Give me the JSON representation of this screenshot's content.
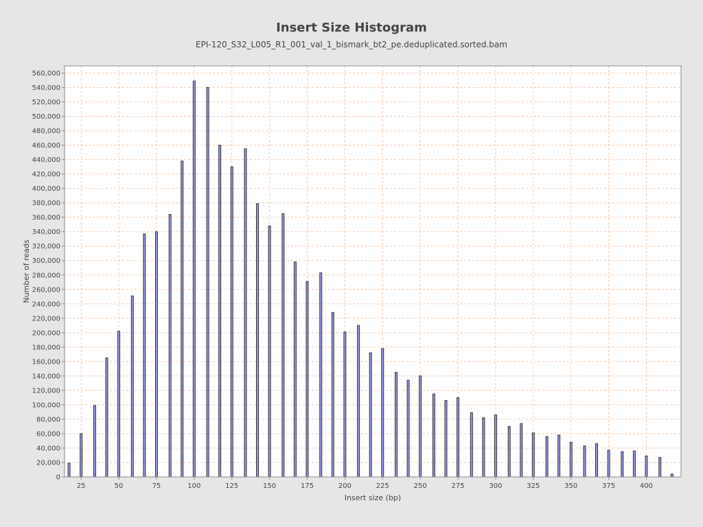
{
  "chart_data": {
    "type": "bar",
    "title": "Insert Size Histogram",
    "subtitle": "EPI-120_S32_L005_R1_001_val_1_bismark_bt2_pe.deduplicated.sorted.bam",
    "xlabel": "Insert size (bp)",
    "ylabel": "Number of reads",
    "xlim": [
      14,
      423
    ],
    "ylim": [
      0,
      570000
    ],
    "x_ticks": [
      25,
      50,
      75,
      100,
      125,
      150,
      175,
      200,
      225,
      250,
      275,
      300,
      325,
      350,
      375,
      400
    ],
    "y_ticks": [
      0,
      20000,
      40000,
      60000,
      80000,
      100000,
      120000,
      140000,
      160000,
      180000,
      200000,
      220000,
      240000,
      260000,
      280000,
      300000,
      320000,
      340000,
      360000,
      380000,
      400000,
      420000,
      440000,
      460000,
      480000,
      500000,
      520000,
      540000,
      560000
    ],
    "x_tick_labels": [
      "25",
      "50",
      "75",
      "100",
      "125",
      "150",
      "175",
      "200",
      "225",
      "250",
      "275",
      "300",
      "325",
      "350",
      "375",
      "400"
    ],
    "y_tick_labels": [
      "0",
      "20,000",
      "40,000",
      "60,000",
      "80,000",
      "100,000",
      "120,000",
      "140,000",
      "160,000",
      "180,000",
      "200,000",
      "220,000",
      "240,000",
      "260,000",
      "280,000",
      "300,000",
      "320,000",
      "340,000",
      "360,000",
      "380,000",
      "400,000",
      "420,000",
      "440,000",
      "460,000",
      "480,000",
      "500,000",
      "520,000",
      "540,000",
      "560,000"
    ],
    "grid": true,
    "x": [
      17,
      25,
      34,
      42,
      50,
      59,
      67,
      75,
      84,
      92,
      100,
      109,
      117,
      125,
      134,
      142,
      150,
      159,
      167,
      175,
      184,
      192,
      200,
      209,
      217,
      225,
      234,
      242,
      250,
      259,
      267,
      275,
      284,
      292,
      300,
      309,
      317,
      325,
      334,
      342,
      350,
      359,
      367,
      375,
      384,
      392,
      400,
      409,
      417
    ],
    "values": [
      19000,
      60000,
      99000,
      165000,
      202000,
      251000,
      337000,
      340000,
      364000,
      438000,
      549000,
      540000,
      460000,
      430000,
      455000,
      379000,
      348000,
      365000,
      298000,
      271000,
      283000,
      228000,
      201000,
      210000,
      172000,
      178000,
      145000,
      134000,
      140000,
      115000,
      106000,
      110000,
      89000,
      82000,
      86000,
      70000,
      74000,
      61000,
      56000,
      58000,
      48000,
      43000,
      46000,
      37000,
      35000,
      36000,
      29000,
      27000,
      4000
    ],
    "colors": {
      "bar_fill": "#9999e8",
      "bar_stroke": "#333333",
      "grid": "#f5c8a8",
      "plot_bg": "#ffffff",
      "page_bg": "#e6e6e6"
    }
  }
}
